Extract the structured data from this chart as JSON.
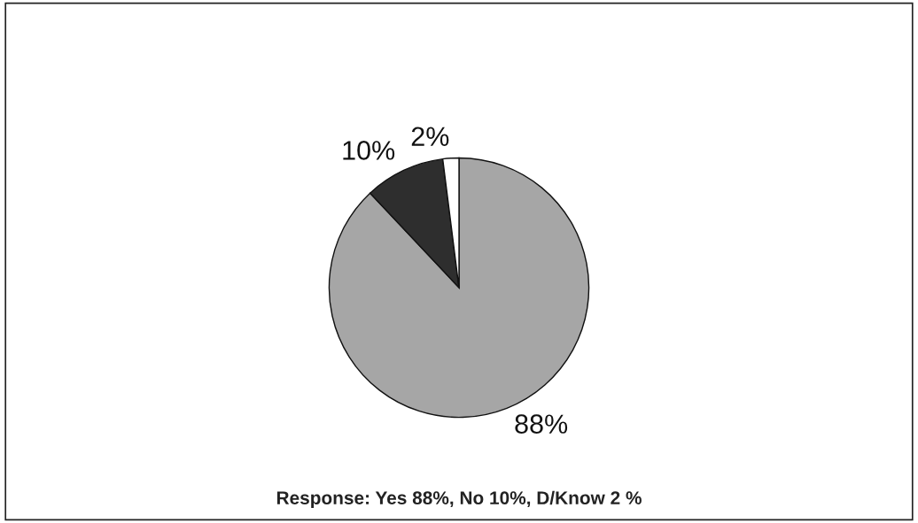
{
  "chart_data": {
    "type": "pie",
    "categories": [
      null,
      null,
      null
    ],
    "values": [
      88,
      10,
      2
    ],
    "colors": [
      "#a6a6a6",
      "#2e2e2e",
      "#ffffff"
    ],
    "value_labels": [
      "88%",
      "10%",
      "2%"
    ],
    "annotations": [
      "Response: Yes 88%, No 10%, D/Know 2 %"
    ]
  }
}
